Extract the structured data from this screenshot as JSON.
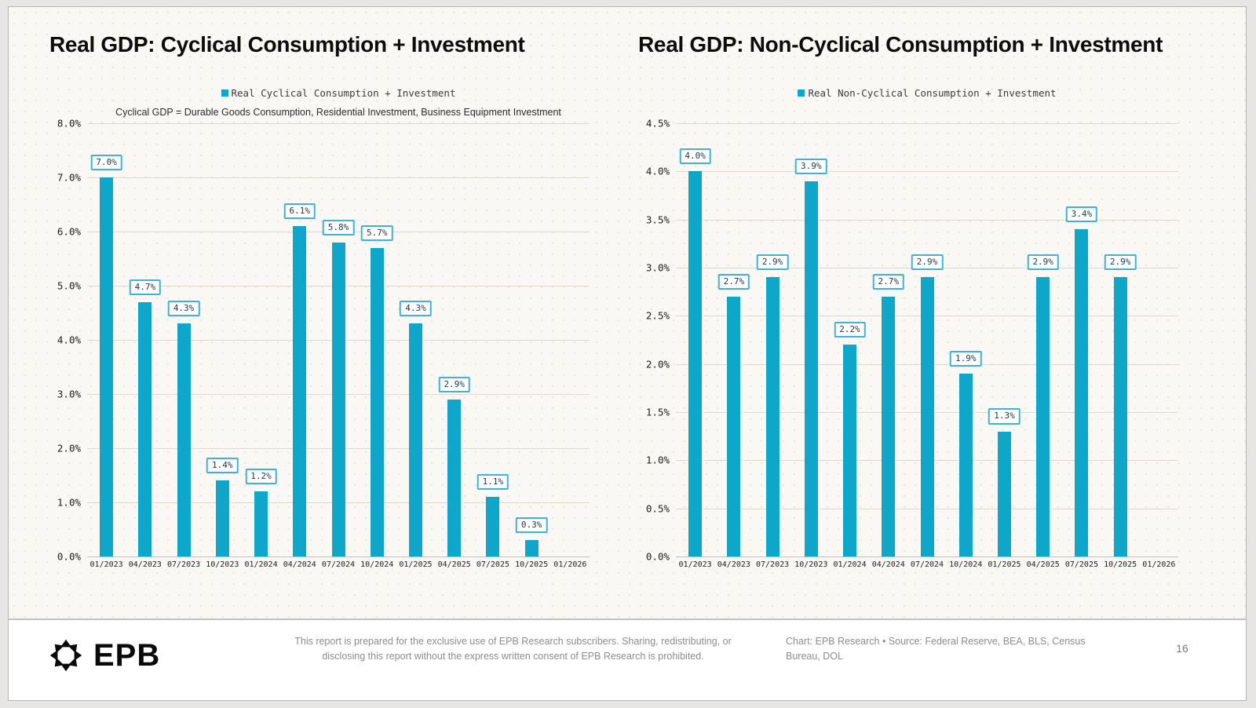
{
  "colors": {
    "bar": "#0ea6c9",
    "label_border": "#42b0d8",
    "label_text": "#22394a",
    "grid": "#ded9d0",
    "background": "#faf8f4"
  },
  "chart_data": [
    {
      "type": "bar",
      "title": "Real GDP: Cyclical Consumption + Investment",
      "legend": "Real Cyclical Consumption + Investment",
      "subtitle": "Cyclical GDP = Durable Goods Consumption, Residential Investment, Business Equipment Investment",
      "categories": [
        "01/2023",
        "04/2023",
        "07/2023",
        "10/2023",
        "01/2024",
        "04/2024",
        "07/2024",
        "10/2024",
        "01/2025",
        "04/2025",
        "07/2025",
        "10/2025",
        "01/2026"
      ],
      "values": [
        7.0,
        4.7,
        4.3,
        1.4,
        1.2,
        6.1,
        5.8,
        5.7,
        4.3,
        2.9,
        1.1,
        0.3,
        null
      ],
      "value_labels": [
        "7.0%",
        "4.7%",
        "4.3%",
        "1.4%",
        "1.2%",
        "6.1%",
        "5.8%",
        "5.7%",
        "4.3%",
        "2.9%",
        "1.1%",
        "0.3%",
        ""
      ],
      "xlabel": "",
      "ylabel": "",
      "ylim": [
        0,
        8
      ],
      "grid": true,
      "legend_position": "top",
      "yticks": [
        {
          "value": 0.0,
          "label": "0.0%"
        },
        {
          "value": 1.0,
          "label": "1.0%"
        },
        {
          "value": 2.0,
          "label": "2.0%"
        },
        {
          "value": 3.0,
          "label": "3.0%"
        },
        {
          "value": 4.0,
          "label": "4.0%"
        },
        {
          "value": 5.0,
          "label": "5.0%"
        },
        {
          "value": 6.0,
          "label": "6.0%"
        },
        {
          "value": 7.0,
          "label": "7.0%"
        },
        {
          "value": 8.0,
          "label": "8.0%"
        }
      ]
    },
    {
      "type": "bar",
      "title": "Real GDP: Non-Cyclical Consumption + Investment",
      "legend": "Real Non-Cyclical Consumption + Investment",
      "subtitle": "",
      "categories": [
        "01/2023",
        "04/2023",
        "07/2023",
        "10/2023",
        "01/2024",
        "04/2024",
        "07/2024",
        "10/2024",
        "01/2025",
        "04/2025",
        "07/2025",
        "10/2025",
        "01/2026"
      ],
      "values": [
        4.0,
        2.7,
        2.9,
        3.9,
        2.2,
        2.7,
        2.9,
        1.9,
        1.3,
        2.9,
        3.4,
        2.9,
        null
      ],
      "value_labels": [
        "4.0%",
        "2.7%",
        "2.9%",
        "3.9%",
        "2.2%",
        "2.7%",
        "2.9%",
        "1.9%",
        "1.3%",
        "2.9%",
        "3.4%",
        "2.9%",
        ""
      ],
      "xlabel": "",
      "ylabel": "",
      "ylim": [
        0,
        4.5
      ],
      "grid": true,
      "legend_position": "top",
      "yticks": [
        {
          "value": 0.0,
          "label": "0.0%"
        },
        {
          "value": 0.5,
          "label": "0.5%"
        },
        {
          "value": 1.0,
          "label": "1.0%"
        },
        {
          "value": 1.5,
          "label": "1.5%"
        },
        {
          "value": 2.0,
          "label": "2.0%"
        },
        {
          "value": 2.5,
          "label": "2.5%"
        },
        {
          "value": 3.0,
          "label": "3.0%"
        },
        {
          "value": 3.5,
          "label": "3.5%"
        },
        {
          "value": 4.0,
          "label": "4.0%"
        },
        {
          "value": 4.5,
          "label": "4.5%"
        }
      ]
    }
  ],
  "footer": {
    "logo_text": "EPB",
    "disclaimer": "This report is prepared for the exclusive use of EPB Research subscribers. Sharing, redistributing, or disclosing this report without the express written consent of EPB Research is prohibited.",
    "source": "Chart: EPB Research  •  Source: Federal Reserve, BEA, BLS, Census Bureau, DOL",
    "page_number": "16"
  }
}
